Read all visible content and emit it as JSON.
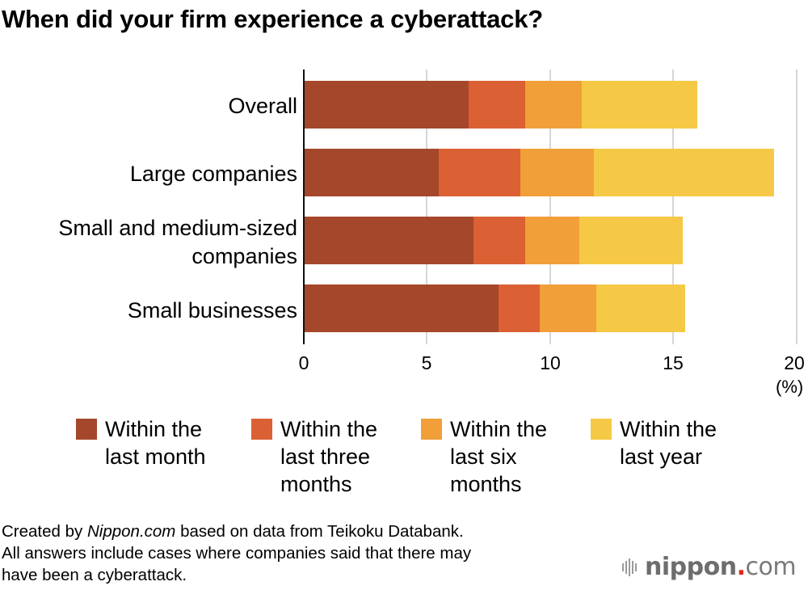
{
  "title": "When did your firm experience a cyberattack?",
  "chart_data": {
    "type": "bar",
    "orientation": "horizontal",
    "stacked": true,
    "title": "When did your firm experience a cyberattack?",
    "xlabel": "(%)",
    "ylabel": "",
    "xlim": [
      0,
      20
    ],
    "xticks": [
      0,
      5,
      10,
      15,
      20
    ],
    "grid": true,
    "legend_position": "bottom",
    "categories": [
      "Overall",
      "Large companies",
      "Small and medium-sized companies",
      "Small businesses"
    ],
    "series": [
      {
        "name": "Within the last month",
        "color": "#a5472a",
        "values": [
          6.7,
          5.5,
          6.9,
          7.9
        ]
      },
      {
        "name": "Within the last three months",
        "color": "#db6034",
        "values": [
          2.3,
          3.3,
          2.1,
          1.7
        ]
      },
      {
        "name": "Within the last six months",
        "color": "#f19f39",
        "values": [
          2.3,
          3.0,
          2.2,
          2.3
        ]
      },
      {
        "name": "Within the last year",
        "color": "#f5c945",
        "values": [
          4.7,
          7.3,
          4.2,
          3.6
        ]
      }
    ],
    "totals": [
      16.0,
      19.1,
      15.4,
      15.5
    ]
  },
  "axis": {
    "ticks": [
      "0",
      "5",
      "10",
      "15",
      "20"
    ],
    "unit": "(%)"
  },
  "categories": [
    {
      "line1": "Overall",
      "line2": ""
    },
    {
      "line1": "Large companies",
      "line2": ""
    },
    {
      "line1": "Small and medium-sized",
      "line2": "companies"
    },
    {
      "line1": "Small businesses",
      "line2": ""
    }
  ],
  "legend": [
    {
      "line1": "Within the",
      "line2": "last month",
      "line3": "",
      "color": "#a5472a"
    },
    {
      "line1": "Within the",
      "line2": "last three",
      "line3": "months",
      "color": "#db6034"
    },
    {
      "line1": "Within the",
      "line2": "last six",
      "line3": "months",
      "color": "#f19f39"
    },
    {
      "line1": "Within the",
      "line2": "last year",
      "line3": "",
      "color": "#f5c945"
    }
  ],
  "footer": {
    "line1_prefix": "Created by ",
    "line1_italic": "Nippon.com",
    "line1_suffix": " based on data from Teikoku Databank.",
    "line2": "All answers include cases where companies said that there may",
    "line3": "have been a cyberattack."
  },
  "logo": {
    "name": "nippon",
    "dot": ".",
    "tld": "com"
  }
}
